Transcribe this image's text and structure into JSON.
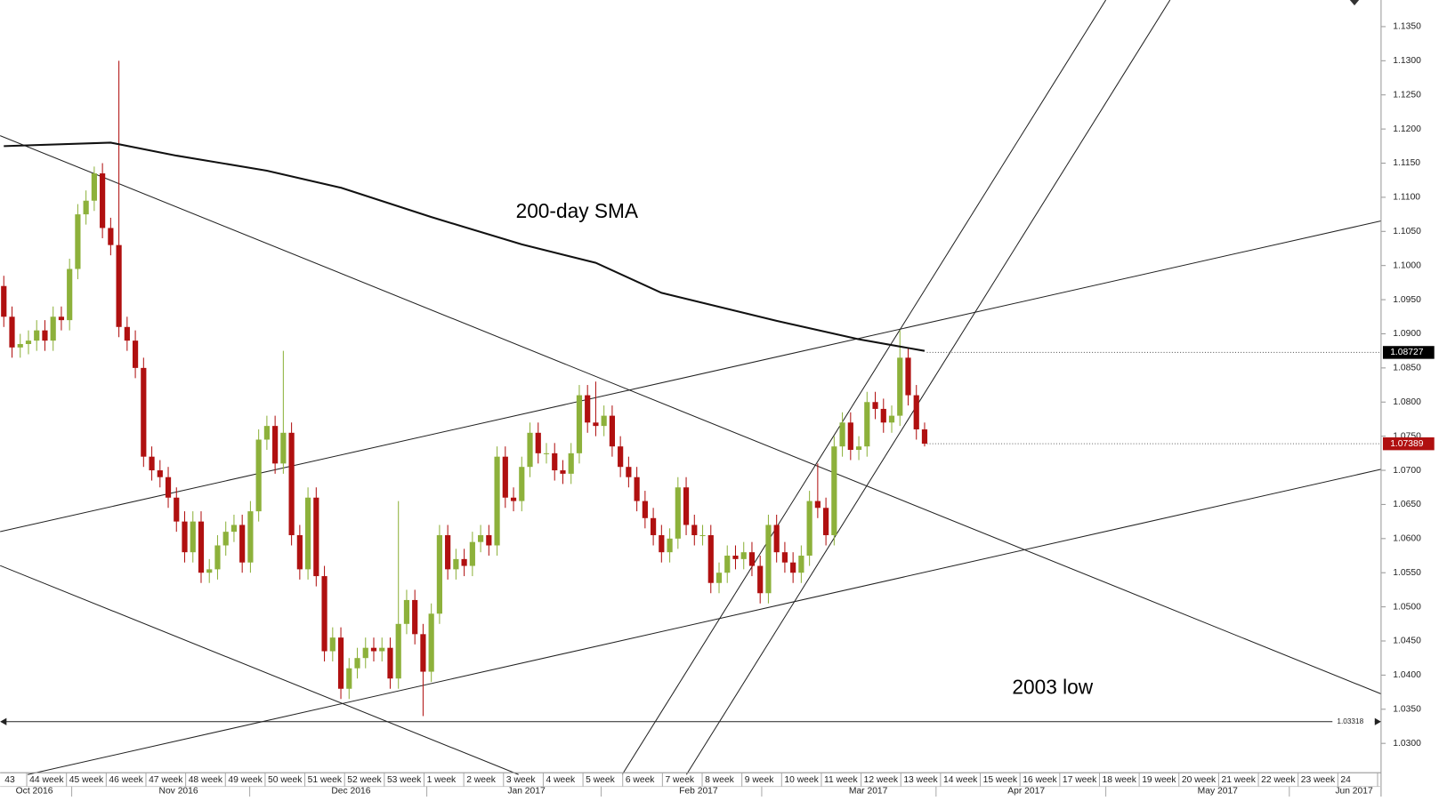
{
  "chart_data": {
    "type": "candlestick",
    "annotations": [
      "200-day SMA",
      "2003 low"
    ],
    "ylim": [
      1.0257,
      1.1389
    ],
    "yticks": [
      {
        "value": 1.03,
        "label": "1.0300"
      },
      {
        "value": 1.035,
        "label": "1.0350"
      },
      {
        "value": 1.04,
        "label": "1.0400"
      },
      {
        "value": 1.045,
        "label": "1.0450"
      },
      {
        "value": 1.05,
        "label": "1.0500"
      },
      {
        "value": 1.055,
        "label": "1.0550"
      },
      {
        "value": 1.06,
        "label": "1.0600"
      },
      {
        "value": 1.065,
        "label": "1.0650"
      },
      {
        "value": 1.07,
        "label": "1.0700"
      },
      {
        "value": 1.075,
        "label": "1.0750"
      },
      {
        "value": 1.08,
        "label": "1.0800"
      },
      {
        "value": 1.085,
        "label": "1.0850"
      },
      {
        "value": 1.09,
        "label": "1.0900"
      },
      {
        "value": 1.095,
        "label": "1.0950"
      },
      {
        "value": 1.1,
        "label": "1.1000"
      },
      {
        "value": 1.105,
        "label": "1.1050"
      },
      {
        "value": 1.11,
        "label": "1.1100"
      },
      {
        "value": 1.115,
        "label": "1.1150"
      },
      {
        "value": 1.12,
        "label": "1.1200"
      },
      {
        "value": 1.125,
        "label": "1.1250"
      },
      {
        "value": 1.13,
        "label": "1.1300"
      },
      {
        "value": 1.135,
        "label": "1.1350"
      }
    ],
    "week_labels": [
      "43",
      "44 week",
      "45 week",
      "46 week",
      "47 week",
      "48 week",
      "49 week",
      "50 week",
      "51 week",
      "52 week",
      "53 week",
      "1 week",
      "2 week",
      "3 week",
      "4 week",
      "5 week",
      "6 week",
      "7 week",
      "8 week",
      "9 week",
      "10 week",
      "11 week",
      "12 week",
      "13 week",
      "14 week",
      "15 week",
      "16 week",
      "17 week",
      "18 week",
      "19 week",
      "20 week",
      "21 week",
      "22 week",
      "23 week",
      "24"
    ],
    "month_labels": [
      "Oct 2016",
      "Nov 2016",
      "Dec 2016",
      "Jan 2017",
      "Feb 2017",
      "Mar 2017",
      "Apr 2017",
      "May 2017",
      "Jun 2017"
    ],
    "up_color": "#8db13b",
    "down_color": "#b01010",
    "ohlc": [
      [
        1.097,
        1.0985,
        1.091,
        1.0925
      ],
      [
        1.0925,
        1.094,
        1.0865,
        1.088
      ],
      [
        1.088,
        1.09,
        1.0865,
        1.0885
      ],
      [
        1.0885,
        1.0905,
        1.087,
        1.089
      ],
      [
        1.089,
        1.092,
        1.0875,
        1.0905
      ],
      [
        1.0905,
        1.092,
        1.0875,
        1.089
      ],
      [
        1.089,
        1.094,
        1.0875,
        1.0925
      ],
      [
        1.0925,
        1.094,
        1.0905,
        1.092
      ],
      [
        1.092,
        1.101,
        1.0905,
        1.0995
      ],
      [
        1.0995,
        1.109,
        1.098,
        1.1075
      ],
      [
        1.1075,
        1.111,
        1.106,
        1.1095
      ],
      [
        1.1095,
        1.1145,
        1.108,
        1.1135
      ],
      [
        1.1135,
        1.115,
        1.104,
        1.1055
      ],
      [
        1.1055,
        1.107,
        1.1015,
        1.103
      ],
      [
        1.103,
        1.13,
        1.0895,
        1.091
      ],
      [
        1.091,
        1.0925,
        1.0875,
        1.089
      ],
      [
        1.089,
        1.0905,
        1.0835,
        1.085
      ],
      [
        1.085,
        1.0865,
        1.0705,
        1.072
      ],
      [
        1.072,
        1.0735,
        1.0685,
        1.07
      ],
      [
        1.07,
        1.0715,
        1.0675,
        1.069
      ],
      [
        1.069,
        1.0705,
        1.0645,
        1.066
      ],
      [
        1.066,
        1.0675,
        1.061,
        1.0625
      ],
      [
        1.0625,
        1.064,
        1.0565,
        1.058
      ],
      [
        1.058,
        1.064,
        1.0565,
        1.0625
      ],
      [
        1.0625,
        1.064,
        1.0535,
        1.055
      ],
      [
        1.055,
        1.057,
        1.0535,
        1.0555
      ],
      [
        1.0555,
        1.0605,
        1.054,
        1.059
      ],
      [
        1.059,
        1.0625,
        1.0575,
        1.061
      ],
      [
        1.061,
        1.0635,
        1.0595,
        1.062
      ],
      [
        1.062,
        1.0635,
        1.055,
        1.0565
      ],
      [
        1.0565,
        1.0655,
        1.055,
        1.064
      ],
      [
        1.064,
        1.076,
        1.0625,
        1.0745
      ],
      [
        1.0745,
        1.078,
        1.073,
        1.0765
      ],
      [
        1.0765,
        1.078,
        1.0695,
        1.071
      ],
      [
        1.071,
        1.0875,
        1.0695,
        1.0755
      ],
      [
        1.0755,
        1.077,
        1.059,
        1.0605
      ],
      [
        1.0605,
        1.062,
        1.054,
        1.0555
      ],
      [
        1.0555,
        1.0675,
        1.054,
        1.066
      ],
      [
        1.066,
        1.0675,
        1.053,
        1.0545
      ],
      [
        1.0545,
        1.056,
        1.042,
        1.0435
      ],
      [
        1.0435,
        1.047,
        1.042,
        1.0455
      ],
      [
        1.0455,
        1.047,
        1.0365,
        1.038
      ],
      [
        1.038,
        1.0425,
        1.0365,
        1.041
      ],
      [
        1.041,
        1.044,
        1.0395,
        1.0425
      ],
      [
        1.0425,
        1.0455,
        1.041,
        1.044
      ],
      [
        1.044,
        1.0455,
        1.042,
        1.0435
      ],
      [
        1.0435,
        1.0455,
        1.042,
        1.044
      ],
      [
        1.044,
        1.0455,
        1.038,
        1.0395
      ],
      [
        1.0395,
        1.0655,
        1.038,
        1.0475
      ],
      [
        1.0475,
        1.0525,
        1.046,
        1.051
      ],
      [
        1.051,
        1.0525,
        1.0445,
        1.046
      ],
      [
        1.046,
        1.0475,
        1.034,
        1.0405
      ],
      [
        1.0405,
        1.0505,
        1.039,
        1.049
      ],
      [
        1.049,
        1.062,
        1.0475,
        1.0605
      ],
      [
        1.0605,
        1.062,
        1.054,
        1.0555
      ],
      [
        1.0555,
        1.0585,
        1.054,
        1.057
      ],
      [
        1.057,
        1.0585,
        1.0545,
        1.056
      ],
      [
        1.056,
        1.061,
        1.0545,
        1.0595
      ],
      [
        1.0595,
        1.062,
        1.058,
        1.0605
      ],
      [
        1.0605,
        1.062,
        1.0575,
        1.059
      ],
      [
        1.059,
        1.0735,
        1.0575,
        1.072
      ],
      [
        1.072,
        1.0735,
        1.0645,
        1.066
      ],
      [
        1.066,
        1.0675,
        1.064,
        1.0655
      ],
      [
        1.0655,
        1.072,
        1.064,
        1.0705
      ],
      [
        1.0705,
        1.077,
        1.069,
        1.0755
      ],
      [
        1.0755,
        1.077,
        1.071,
        1.0725
      ],
      [
        1.0725,
        1.074,
        1.071,
        1.0725
      ],
      [
        1.0725,
        1.074,
        1.0685,
        1.07
      ],
      [
        1.07,
        1.0715,
        1.068,
        1.0695
      ],
      [
        1.0695,
        1.074,
        1.068,
        1.0725
      ],
      [
        1.0725,
        1.0825,
        1.071,
        1.081
      ],
      [
        1.081,
        1.0825,
        1.0755,
        1.077
      ],
      [
        1.077,
        1.083,
        1.075,
        1.0765
      ],
      [
        1.0765,
        1.0795,
        1.075,
        1.078
      ],
      [
        1.078,
        1.0795,
        1.072,
        1.0735
      ],
      [
        1.0735,
        1.075,
        1.069,
        1.0705
      ],
      [
        1.0705,
        1.072,
        1.0675,
        1.069
      ],
      [
        1.069,
        1.0705,
        1.064,
        1.0655
      ],
      [
        1.0655,
        1.067,
        1.0615,
        1.063
      ],
      [
        1.063,
        1.0645,
        1.059,
        1.0605
      ],
      [
        1.0605,
        1.062,
        1.0565,
        1.058
      ],
      [
        1.058,
        1.0615,
        1.0565,
        1.06
      ],
      [
        1.06,
        1.069,
        1.0585,
        1.0675
      ],
      [
        1.0675,
        1.069,
        1.0605,
        1.062
      ],
      [
        1.062,
        1.0635,
        1.059,
        1.0605
      ],
      [
        1.0605,
        1.062,
        1.059,
        1.0605
      ],
      [
        1.0605,
        1.062,
        1.052,
        1.0535
      ],
      [
        1.0535,
        1.0565,
        1.052,
        1.055
      ],
      [
        1.055,
        1.059,
        1.0535,
        1.0575
      ],
      [
        1.0575,
        1.059,
        1.0555,
        1.057
      ],
      [
        1.057,
        1.0595,
        1.0555,
        1.058
      ],
      [
        1.058,
        1.0595,
        1.0545,
        1.056
      ],
      [
        1.056,
        1.0575,
        1.0505,
        1.052
      ],
      [
        1.052,
        1.0635,
        1.0505,
        1.062
      ],
      [
        1.062,
        1.0635,
        1.0565,
        1.058
      ],
      [
        1.058,
        1.0595,
        1.055,
        1.0565
      ],
      [
        1.0565,
        1.058,
        1.0535,
        1.055
      ],
      [
        1.055,
        1.059,
        1.0535,
        1.0575
      ],
      [
        1.0575,
        1.067,
        1.056,
        1.0655
      ],
      [
        1.0655,
        1.071,
        1.063,
        1.0645
      ],
      [
        1.0645,
        1.066,
        1.059,
        1.0605
      ],
      [
        1.0605,
        1.075,
        1.059,
        1.0735
      ],
      [
        1.0735,
        1.0785,
        1.072,
        1.077
      ],
      [
        1.077,
        1.0785,
        1.0715,
        1.073
      ],
      [
        1.073,
        1.075,
        1.0715,
        1.0735
      ],
      [
        1.0735,
        1.0815,
        1.072,
        1.08
      ],
      [
        1.08,
        1.0815,
        1.0775,
        1.079
      ],
      [
        1.079,
        1.0805,
        1.0755,
        1.077
      ],
      [
        1.077,
        1.0795,
        1.0755,
        1.078
      ],
      [
        1.078,
        1.0905,
        1.0765,
        1.0865
      ],
      [
        1.0865,
        1.088,
        1.0795,
        1.081
      ],
      [
        1.081,
        1.0825,
        1.0745,
        1.076
      ],
      [
        1.076,
        1.077,
        1.0735,
        1.0739
      ]
    ],
    "sma": {
      "x": [
        0,
        13,
        21,
        32,
        41,
        52,
        63,
        72,
        80,
        94,
        104,
        112
      ],
      "values": [
        1.1175,
        1.118,
        1.1161,
        1.1139,
        1.1114,
        1.1071,
        1.1031,
        1.1004,
        1.096,
        1.0919,
        1.0892,
        1.0875
      ],
      "color": "#111111"
    },
    "price_tags": [
      {
        "value": 1.08727,
        "color": "#000000"
      },
      {
        "value": 1.07389,
        "color": "#b01010"
      }
    ],
    "level": {
      "value": 1.03318
    }
  }
}
